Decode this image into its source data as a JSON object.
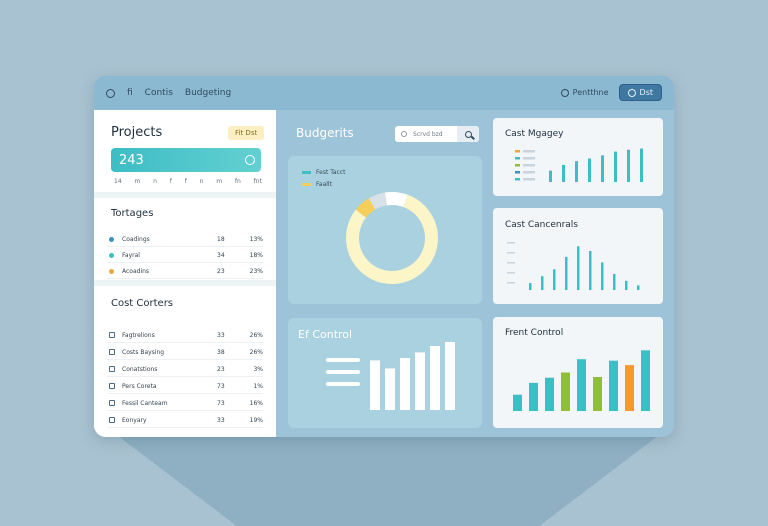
{
  "topbar": {
    "items": [
      "fi",
      "Contis",
      "Budgeting"
    ],
    "right_label": "Pentthne",
    "button_label": "Dst"
  },
  "left": {
    "projects_title": "Projects",
    "projects_badge": "Fit Dst",
    "kpi_value": "243",
    "ticks": [
      "14",
      "m",
      "n",
      "f",
      "f",
      "n",
      "m",
      "fn",
      "fnt"
    ],
    "tortages_title": "Tortages",
    "tortages": [
      {
        "name": "Coadings",
        "v1": "18",
        "v2": "13%",
        "color": "#3f8fc0"
      },
      {
        "name": "Fayral",
        "v1": "34",
        "v2": "18%",
        "color": "#3dbdc4"
      },
      {
        "name": "Acoadins",
        "v1": "23",
        "v2": "23%",
        "color": "#e8a93a"
      }
    ],
    "cost_title": "Cost Corters",
    "costs": [
      {
        "name": "Fagtrelions",
        "v1": "33",
        "v2": "26%"
      },
      {
        "name": "Costs Baysing",
        "v1": "38",
        "v2": "26%"
      },
      {
        "name": "Conatstions",
        "v1": "23",
        "v2": "3%"
      },
      {
        "name": "Pers Coreta",
        "v1": "73",
        "v2": "1%"
      },
      {
        "name": "Fessil Canteam",
        "v1": "73",
        "v2": "16%"
      },
      {
        "name": "Eonyary",
        "v1": "33",
        "v2": "19%"
      }
    ]
  },
  "center": {
    "title": "Budgerits",
    "search_placeholder": "Scrvd  bzd",
    "donut_legend": [
      {
        "label": "Fest Tacct",
        "color": "#3dbdc4"
      },
      {
        "label": "Faallt",
        "color": "#f6cf5a"
      }
    ],
    "donut": [
      {
        "value": 80,
        "color": "#fbf5c8"
      },
      {
        "value": 6,
        "color": "#f6cf5a"
      },
      {
        "value": 6,
        "color": "#d8e1e8"
      },
      {
        "value": 8,
        "color": "#ffffff"
      }
    ],
    "bottom_title": "Ef Control",
    "bottom_bars": [
      0.62,
      0.52,
      0.65,
      0.72,
      0.8,
      0.85
    ]
  },
  "right": {
    "card1_title": "Cast Mgagey",
    "card1_legend": [
      "#e8a93a",
      "#3dbdc4",
      "#8fbf3a",
      "#3f8fc0",
      "#3dbdc4"
    ],
    "card1_bars": [
      0.3,
      0.45,
      0.55,
      0.62,
      0.7,
      0.8,
      0.85,
      0.88
    ],
    "card2_title": "Cast Cancenrals",
    "card2_bars": [
      0.15,
      0.3,
      0.45,
      0.72,
      0.95,
      0.85,
      0.6,
      0.35,
      0.2,
      0.1
    ],
    "card3_title": "Frent Control",
    "card3_bars": [
      {
        "v": 0.22,
        "c": "#3dbdc4"
      },
      {
        "v": 0.38,
        "c": "#3dbdc4"
      },
      {
        "v": 0.45,
        "c": "#3dbdc4"
      },
      {
        "v": 0.52,
        "c": "#8fbf3a"
      },
      {
        "v": 0.7,
        "c": "#3dbdc4"
      },
      {
        "v": 0.46,
        "c": "#8fbf3a"
      },
      {
        "v": 0.68,
        "c": "#3dbdc4"
      },
      {
        "v": 0.62,
        "c": "#f29a2e"
      },
      {
        "v": 0.82,
        "c": "#3dbdc4"
      }
    ]
  }
}
